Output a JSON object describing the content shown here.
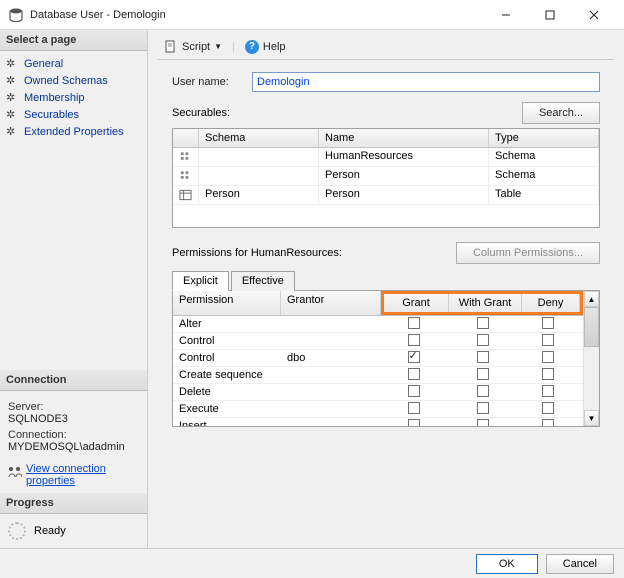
{
  "window": {
    "title": "Database User - Demologin"
  },
  "toolbar": {
    "script": "Script",
    "help": "Help"
  },
  "sidebar": {
    "header": "Select a page",
    "items": [
      {
        "label": "General"
      },
      {
        "label": "Owned Schemas"
      },
      {
        "label": "Membership"
      },
      {
        "label": "Securables"
      },
      {
        "label": "Extended Properties"
      }
    ]
  },
  "connection": {
    "header": "Connection",
    "server_label": "Server:",
    "server_value": "SQLNODE3",
    "conn_label": "Connection:",
    "conn_value": "MYDEMOSQL\\adadmin",
    "link": "View connection properties"
  },
  "progress": {
    "header": "Progress",
    "status": "Ready"
  },
  "form": {
    "username_label": "User name:",
    "username_value": "Demologin",
    "securables_label": "Securables:",
    "search_btn": "Search..."
  },
  "securables_grid": {
    "columns": {
      "schema": "Schema",
      "name": "Name",
      "type": "Type"
    },
    "rows": [
      {
        "schema": "",
        "name": "HumanResources",
        "type": "Schema"
      },
      {
        "schema": "",
        "name": "Person",
        "type": "Schema"
      },
      {
        "schema": "Person",
        "name": "Person",
        "type": "Table"
      }
    ]
  },
  "permissions": {
    "label": "Permissions for HumanResources:",
    "col_perm_btn": "Column Permissions...",
    "tabs": {
      "explicit": "Explicit",
      "effective": "Effective"
    },
    "columns": {
      "permission": "Permission",
      "grantor": "Grantor",
      "grant": "Grant",
      "withgrant": "With Grant",
      "deny": "Deny"
    },
    "rows": [
      {
        "permission": "Alter",
        "grantor": "",
        "grant": false,
        "withgrant": false,
        "deny": false
      },
      {
        "permission": "Control",
        "grantor": "",
        "grant": false,
        "withgrant": false,
        "deny": false
      },
      {
        "permission": "Control",
        "grantor": "dbo",
        "grant": true,
        "withgrant": false,
        "deny": false
      },
      {
        "permission": "Create sequence",
        "grantor": "",
        "grant": false,
        "withgrant": false,
        "deny": false
      },
      {
        "permission": "Delete",
        "grantor": "",
        "grant": false,
        "withgrant": false,
        "deny": false
      },
      {
        "permission": "Execute",
        "grantor": "",
        "grant": false,
        "withgrant": false,
        "deny": false
      },
      {
        "permission": "Insert",
        "grantor": "",
        "grant": false,
        "withgrant": false,
        "deny": false
      }
    ]
  },
  "footer": {
    "ok": "OK",
    "cancel": "Cancel"
  },
  "colors": {
    "highlight": "#f57c1f",
    "link": "#0645cc",
    "input_border": "#7a9ac9"
  }
}
